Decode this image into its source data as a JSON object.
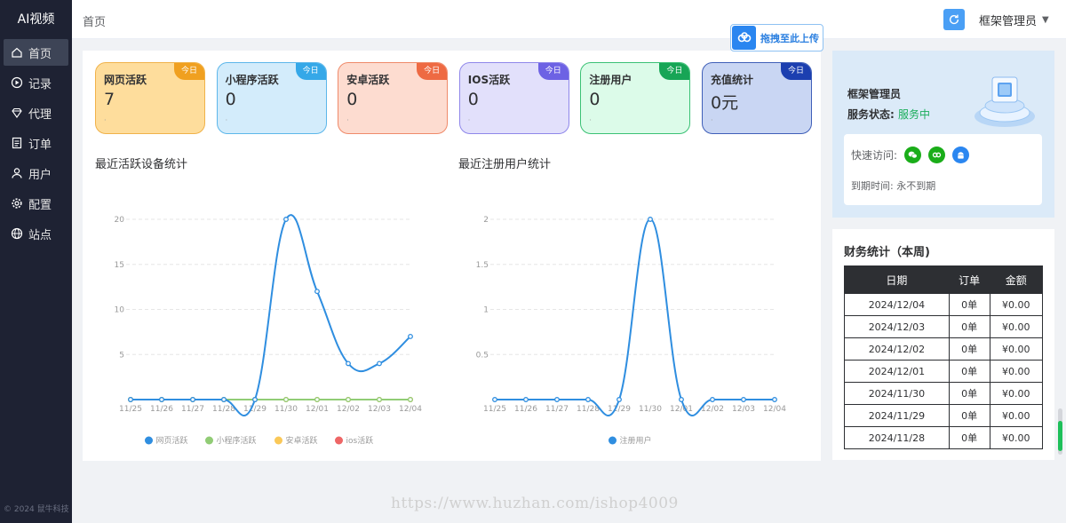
{
  "app": {
    "brand": "AI视频",
    "copyright": "© 2024 鼠牛科技",
    "watermark": "https://www.huzhan.com/ishop4009"
  },
  "sidebar": {
    "items": [
      {
        "label": "首页",
        "icon": "home-icon",
        "active": true
      },
      {
        "label": "记录",
        "icon": "play-circle-icon",
        "active": false
      },
      {
        "label": "代理",
        "icon": "diamond-icon",
        "active": false
      },
      {
        "label": "订单",
        "icon": "document-icon",
        "active": false
      },
      {
        "label": "用户",
        "icon": "user-icon",
        "active": false
      },
      {
        "label": "配置",
        "icon": "gear-icon",
        "active": false
      },
      {
        "label": "站点",
        "icon": "globe-icon",
        "active": false
      }
    ]
  },
  "header": {
    "breadcrumb": "首页",
    "user": "框架管理员",
    "refresh_icon": "refresh-icon"
  },
  "upload": {
    "label": "拖拽至此上传",
    "icon": "cloud-icon"
  },
  "stats": [
    {
      "title": "网页活跃",
      "value": "7",
      "badge": "今日",
      "dot": "·",
      "bg": "#fedd9c",
      "border": "#f0b24a",
      "badge_color": "#f0a020"
    },
    {
      "title": "小程序活跃",
      "value": "0",
      "badge": "今日",
      "dot": "·",
      "bg": "#d3ecfb",
      "border": "#5db7ea",
      "badge_color": "#35a8e8"
    },
    {
      "title": "安卓活跃",
      "value": "0",
      "badge": "今日",
      "dot": "·",
      "bg": "#fddcd0",
      "border": "#ef8a6a",
      "badge_color": "#ee6a43"
    },
    {
      "title": "IOS活跃",
      "value": "0",
      "badge": "今日",
      "dot": "·",
      "bg": "#e2e0fb",
      "border": "#8f87ea",
      "badge_color": "#6d62e4"
    },
    {
      "title": "注册用户",
      "value": "0",
      "badge": "今日",
      "dot": "·",
      "bg": "#dcfbe9",
      "border": "#3bc175",
      "badge_color": "#17a556"
    },
    {
      "title": "充值统计",
      "value": "0元",
      "badge": "今日",
      "dot": "·",
      "bg": "#c9d6f3",
      "border": "#3f5fb8",
      "badge_color": "#1c3fb0"
    }
  ],
  "profile": {
    "name": "框架管理员",
    "status_label": "服务状态:",
    "status_value": "服务中",
    "quick_label": "快速访问:",
    "quick_icons": [
      "wechat-icon",
      "link-icon",
      "android-icon"
    ],
    "expire_label": "到期时间:",
    "expire_value": "永不到期"
  },
  "finance": {
    "title": "财务统计（本周)",
    "headers": [
      "日期",
      "订单",
      "金额"
    ],
    "rows": [
      [
        "2024/12/04",
        "0单",
        "¥0.00"
      ],
      [
        "2024/12/03",
        "0单",
        "¥0.00"
      ],
      [
        "2024/12/02",
        "0单",
        "¥0.00"
      ],
      [
        "2024/12/01",
        "0单",
        "¥0.00"
      ],
      [
        "2024/11/30",
        "0单",
        "¥0.00"
      ],
      [
        "2024/11/29",
        "0单",
        "¥0.00"
      ],
      [
        "2024/11/28",
        "0单",
        "¥0.00"
      ]
    ]
  },
  "chart_data": [
    {
      "type": "line",
      "title": "最近活跃设备统计",
      "categories": [
        "11/25",
        "11/26",
        "11/27",
        "11/28",
        "11/29",
        "11/30",
        "12/01",
        "12/02",
        "12/03",
        "12/04"
      ],
      "ylim": [
        0,
        20
      ],
      "yticks": [
        "5",
        "10",
        "15",
        "20"
      ],
      "legend_placement": "bottom-center",
      "series": [
        {
          "name": "网页活跃",
          "color": "#2f8ee0",
          "values": [
            0,
            0,
            0,
            0,
            0,
            20,
            12,
            4,
            4,
            7
          ]
        },
        {
          "name": "小程序活跃",
          "color": "#91cc75",
          "values": [
            0,
            0,
            0,
            0,
            0,
            0,
            0,
            0,
            0,
            0
          ]
        },
        {
          "name": "安卓活跃",
          "color": "#fac858",
          "values": [
            0,
            0,
            0,
            0,
            0,
            0,
            0,
            0,
            0,
            0
          ]
        },
        {
          "name": "ios活跃",
          "color": "#ee6666",
          "values": [
            0,
            0,
            0,
            0,
            0,
            0,
            0,
            0,
            0,
            0
          ]
        }
      ]
    },
    {
      "type": "line",
      "title": "最近注册用户统计",
      "categories": [
        "11/25",
        "11/26",
        "11/27",
        "11/28",
        "11/29",
        "11/30",
        "12/01",
        "12/02",
        "12/03",
        "12/04"
      ],
      "ylim": [
        0,
        2
      ],
      "yticks": [
        "0.5",
        "1",
        "1.5",
        "2"
      ],
      "legend_placement": "bottom-center",
      "series": [
        {
          "name": "注册用户",
          "color": "#2f8ee0",
          "values": [
            0,
            0,
            0,
            0,
            0,
            2,
            0,
            0,
            0,
            0
          ]
        }
      ]
    }
  ]
}
